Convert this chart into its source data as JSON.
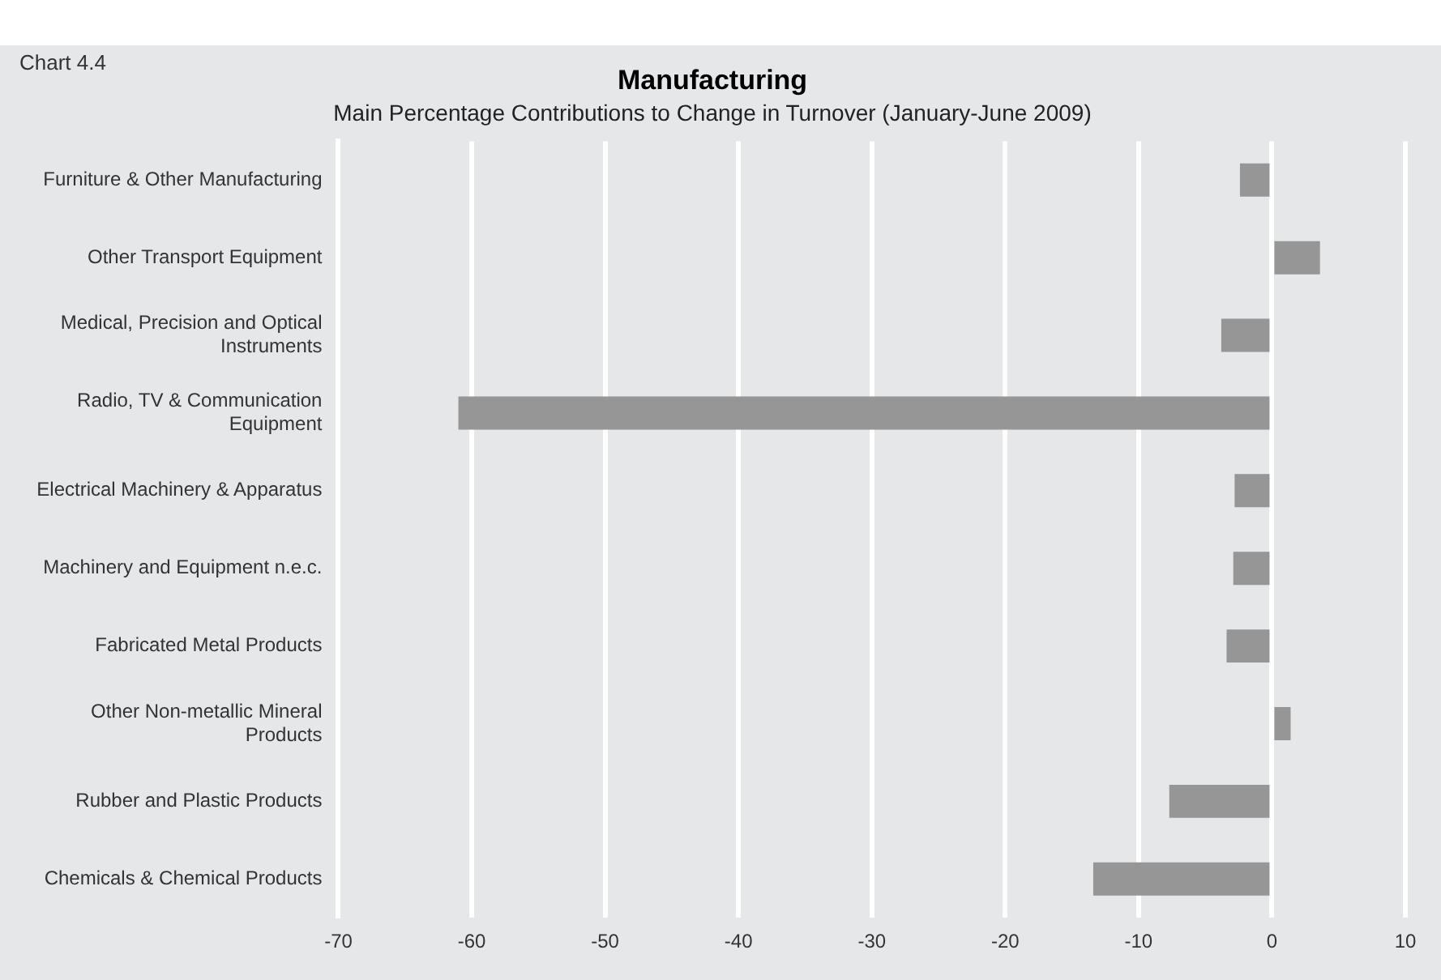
{
  "chart_data": {
    "type": "bar",
    "orientation": "horizontal",
    "title": "Manufacturing",
    "subtitle": "Main Percentage Contributions to Change in Turnover (January-June 2009)",
    "annotations": [
      "Chart 4.4"
    ],
    "categories": [
      "Furniture & Other Manufacturing",
      "Other Transport Equipment",
      "Medical, Precision and Optical Instruments",
      "Radio, TV & Communication Equipment",
      "Electrical Machinery & Apparatus",
      "Machinery and Equipment n.e.c.",
      "Fabricated Metal Products",
      "Other Non-metallic Mineral Products",
      "Rubber and Plastic Products",
      "Chemicals & Chemical Products"
    ],
    "values": [
      -2.4,
      3.6,
      -3.8,
      -61.0,
      -2.8,
      -2.9,
      -3.4,
      1.4,
      -7.7,
      -13.4
    ],
    "color": "#969696",
    "xlim": [
      -70,
      10
    ],
    "xticks": [
      -70,
      -60,
      -50,
      -40,
      -30,
      -20,
      -10,
      0,
      10
    ],
    "grid": "x",
    "legend": false
  }
}
